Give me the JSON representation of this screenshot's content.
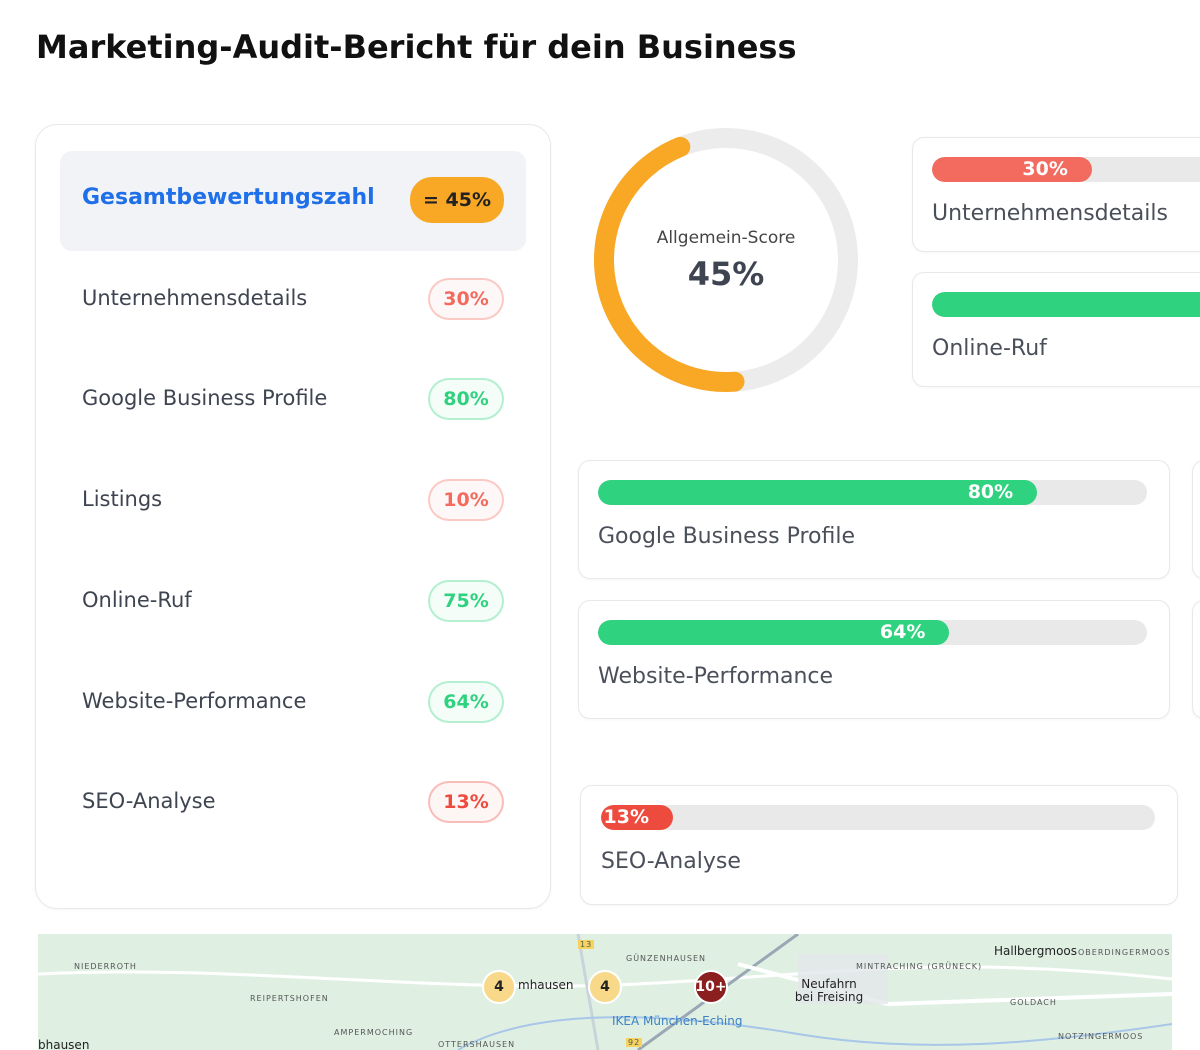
{
  "header": {
    "title": "Marketing-Audit-Bericht für dein Business"
  },
  "overall": {
    "name": "Gesamtbewertungszahl",
    "badge": "= 45%",
    "gauge_label": "Allgemein-Score",
    "value": 45,
    "label": "45%",
    "color": "#f9a825"
  },
  "categories": [
    {
      "name": "Unternehmensdetails",
      "value": 30,
      "label": "30%",
      "color": "#f26b5e"
    },
    {
      "name": "Google Business Profile",
      "value": 80,
      "label": "80%",
      "color": "#2fd27f"
    },
    {
      "name": "Listings",
      "value": 10,
      "label": "10%",
      "color": "#f26b5e"
    },
    {
      "name": "Online-Ruf",
      "value": 75,
      "label": "75%",
      "color": "#2fd27f"
    },
    {
      "name": "Website-Performance",
      "value": 64,
      "label": "64%",
      "color": "#2fd27f"
    },
    {
      "name": "SEO-Analyse",
      "value": 13,
      "label": "13%",
      "color": "#ee4b3f"
    }
  ],
  "map": {
    "places": [
      "NIEDERROTH",
      "REIPERTSHOFEN",
      "AMPERMOCHING",
      "OTTERSHAUSEN",
      "GÜNZENHAUSEN",
      "mhausen",
      "IKEA München-Eching",
      "Neufahrn bei Freising",
      "MINTRACHING (GRÜNECK)",
      "Hallbergmoos",
      "OBERDINGERMOOS",
      "GOLDACH",
      "NOTZINGERMOOS",
      "bhausen",
      "13",
      "92"
    ],
    "clusters": [
      "4",
      "4",
      "10+"
    ]
  }
}
